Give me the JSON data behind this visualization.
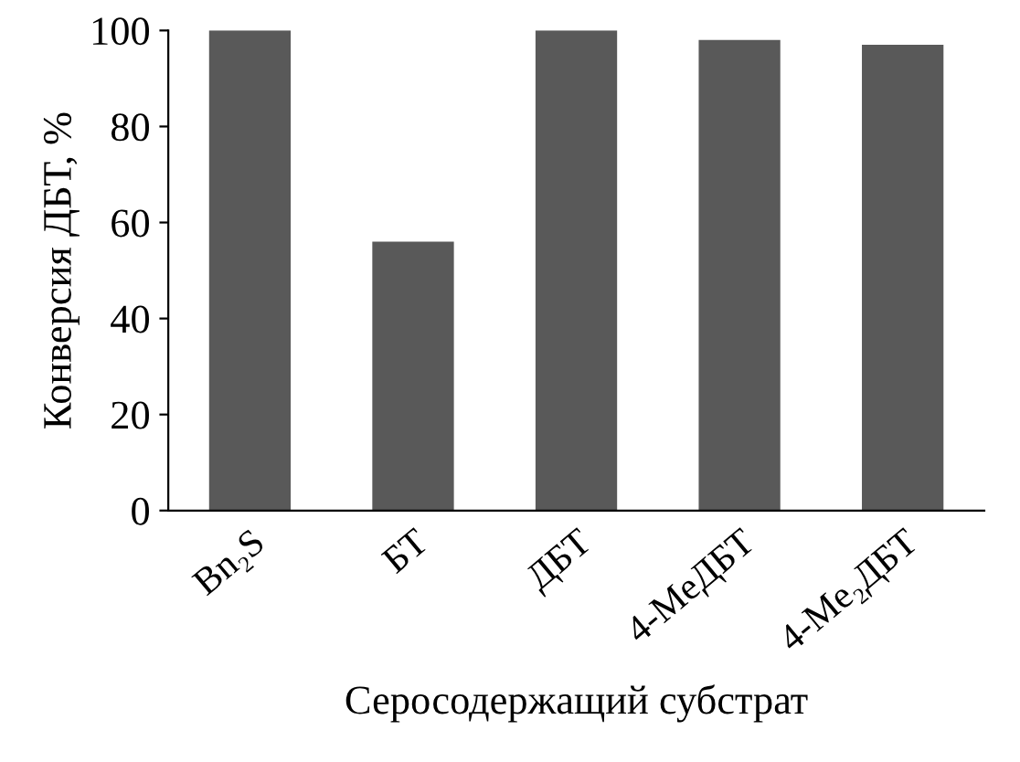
{
  "chart_data": {
    "type": "bar",
    "xlabel": "Серосодержащий субстрат",
    "ylabel": "Конверсия ДБТ, %",
    "categories": [
      "Bn₂S",
      "БТ",
      "ДБТ",
      "4-MeДБТ",
      "4-Me₂ДБТ"
    ],
    "values": [
      100,
      56,
      100,
      98,
      97
    ],
    "color": "#595959",
    "ylim": [
      0,
      100
    ],
    "yticks": [
      0,
      20,
      40,
      60,
      80,
      100
    ],
    "grid": false,
    "legend": false
  }
}
